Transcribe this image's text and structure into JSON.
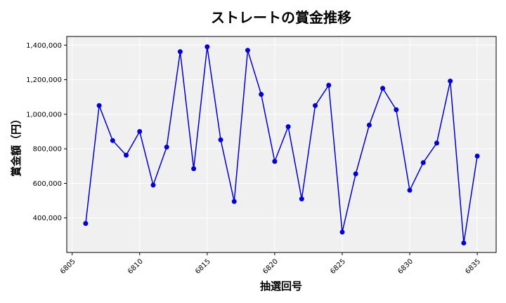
{
  "chart_data": {
    "type": "line",
    "title": "ストレートの賞金推移",
    "xlabel": "抽選回号",
    "ylabel": "賞金額（円）",
    "x": [
      6806,
      6807,
      6808,
      6809,
      6810,
      6811,
      6812,
      6813,
      6814,
      6815,
      6816,
      6817,
      6818,
      6819,
      6820,
      6821,
      6822,
      6823,
      6824,
      6825,
      6826,
      6827,
      6828,
      6829,
      6830,
      6831,
      6832,
      6833,
      6834,
      6835
    ],
    "series": [
      {
        "values": [
          368000,
          1050000,
          848000,
          763000,
          900000,
          590000,
          810000,
          1362000,
          685000,
          1390000,
          852000,
          495000,
          1370000,
          1115000,
          727000,
          928000,
          510000,
          1050000,
          1168000,
          318000,
          655000,
          937000,
          1150000,
          1026000,
          560000,
          720000,
          833000,
          1192000,
          255000,
          758000
        ]
      }
    ],
    "xlim": [
      6804.6,
      6836.4
    ],
    "ylim": [
      200000,
      1450000
    ],
    "xticks": [
      6805,
      6810,
      6815,
      6820,
      6825,
      6830,
      6835
    ],
    "yticks": [
      400000,
      600000,
      800000,
      1000000,
      1200000,
      1400000
    ],
    "ytick_labels": [
      "400,000",
      "600,000",
      "800,000",
      "1,000,000",
      "1,200,000",
      "1,400,000"
    ],
    "grid": true,
    "line_color": "#0000cc",
    "marker_color": "#0000dd",
    "background": "#f0f0f0"
  }
}
